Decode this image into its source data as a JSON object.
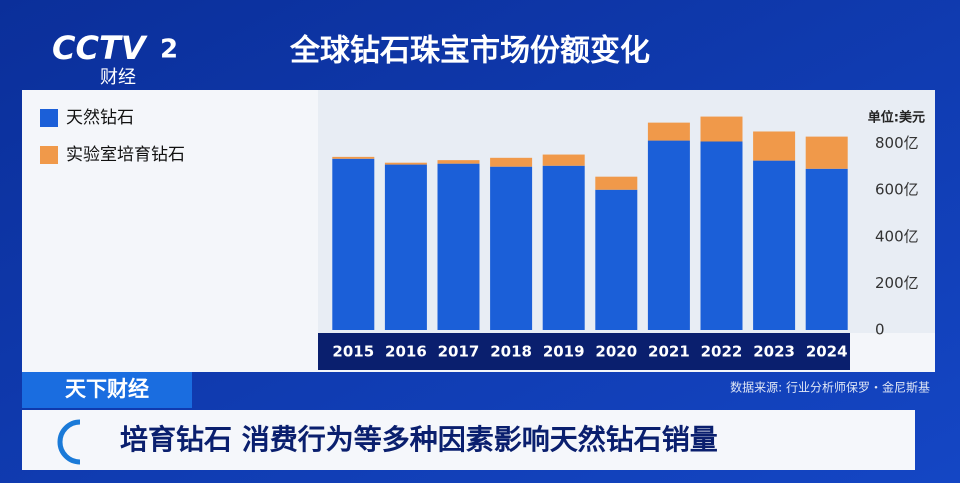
{
  "header": {
    "logo": "CCTV",
    "channel": "2",
    "channel_name": "财经",
    "title": "全球钻石珠宝市场份额变化"
  },
  "chart_data": {
    "type": "stacked_bar",
    "unit": "单位:美元",
    "categories": [
      "2015",
      "2016",
      "2017",
      "2018",
      "2019",
      "2020",
      "2021",
      "2022",
      "2023",
      "2024"
    ],
    "series": [
      {
        "name": "天然钻石",
        "color": "#1b5fd8",
        "values": [
          735,
          710,
          714,
          701,
          705,
          602,
          813,
          809,
          727,
          692
        ]
      },
      {
        "name": "实验室培育钻石",
        "color": "#f0994a",
        "values": [
          8,
          8,
          15,
          38,
          48,
          56,
          77,
          107,
          125,
          138
        ]
      }
    ],
    "ylim": [
      0,
      1000
    ],
    "yticks": [
      0,
      {
        "value": 200,
        "label": "200亿"
      },
      {
        "value": 400,
        "label": "400亿"
      },
      {
        "value": 600,
        "label": "600亿"
      },
      {
        "value": 800,
        "label": "800亿"
      }
    ],
    "legend": "top-left"
  },
  "source": "数据来源: 行业分析师保罗・金尼斯基",
  "program": "天下财经",
  "ticker": "培育钻石 消费行为等多种因素影响天然钻石销量"
}
